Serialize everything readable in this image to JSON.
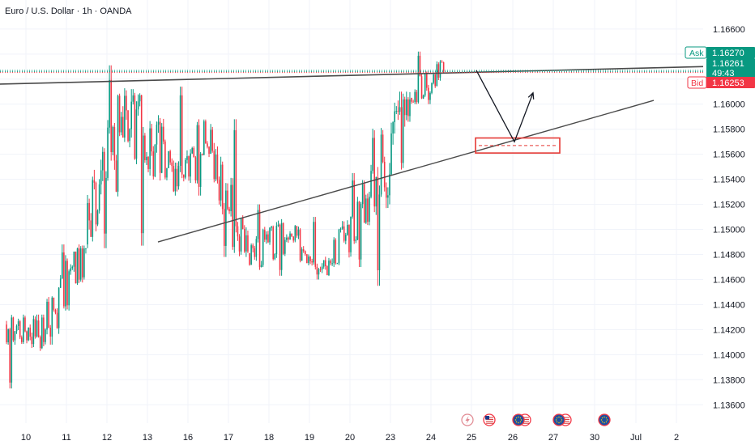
{
  "header": {
    "title": "Euro / U.S. Dollar · 1h · OANDA"
  },
  "colors": {
    "up": "#089981",
    "down": "#f23645",
    "ask": "#089981",
    "bid": "#f23645",
    "trendline": "#4a4a4a",
    "projection": "#131722",
    "zone": "#e53935",
    "grid": "#f0f3fa"
  },
  "price_badges": {
    "ask_label": "Ask",
    "ask_value": "1.16270",
    "last_value": "1.16261",
    "countdown": "49:43",
    "bid_label": "Bid",
    "bid_value": "1.16253"
  },
  "event_icons": [
    "lightning-icon",
    "us-flag-icon",
    "eu-us-flags-icon",
    "eu-us-flags-icon",
    "eu-flag-icon"
  ],
  "chart_data": {
    "type": "candlestick",
    "instrument": "Euro / U.S. Dollar",
    "timeframe": "1h",
    "source": "OANDA",
    "ylim": [
      1.1355,
      1.1678
    ],
    "y_ticks": [
      "1.16600",
      "1.16400",
      "1.16200",
      "1.16000",
      "1.15800",
      "1.15600",
      "1.15400",
      "1.15200",
      "1.15000",
      "1.14800",
      "1.14600",
      "1.14400",
      "1.14200",
      "1.14000",
      "1.13800",
      "1.13600"
    ],
    "x_ticks": [
      "10",
      "11",
      "12",
      "13",
      "16",
      "17",
      "18",
      "19",
      "20",
      "23",
      "24",
      "25",
      "26",
      "27",
      "30",
      "Jul",
      "2"
    ],
    "grid": true,
    "legend": "none",
    "daily_ohlc": [
      {
        "day": "10",
        "open": 1.1424,
        "high": 1.1432,
        "low": 1.1373,
        "close": 1.142
      },
      {
        "day": "11",
        "open": 1.142,
        "high": 1.1488,
        "low": 1.1408,
        "close": 1.1488
      },
      {
        "day": "12",
        "open": 1.1488,
        "high": 1.1631,
        "low": 1.1485,
        "close": 1.1595
      },
      {
        "day": "13",
        "open": 1.1595,
        "high": 1.1612,
        "low": 1.1487,
        "close": 1.1549
      },
      {
        "day": "16",
        "open": 1.1549,
        "high": 1.1614,
        "low": 1.1527,
        "close": 1.1566
      },
      {
        "day": "17",
        "open": 1.1566,
        "high": 1.1588,
        "low": 1.1478,
        "close": 1.1481
      },
      {
        "day": "18",
        "open": 1.1481,
        "high": 1.152,
        "low": 1.1463,
        "close": 1.1492
      },
      {
        "day": "19",
        "open": 1.1492,
        "high": 1.151,
        "low": 1.146,
        "close": 1.1475
      },
      {
        "day": "20",
        "open": 1.1475,
        "high": 1.1545,
        "low": 1.147,
        "close": 1.1526
      },
      {
        "day": "23",
        "open": 1.1526,
        "high": 1.161,
        "low": 1.1455,
        "close": 1.1605
      },
      {
        "day": "24",
        "open": 1.1605,
        "high": 1.1642,
        "low": 1.16,
        "close": 1.1626
      }
    ],
    "current_price": 1.16261,
    "ask": 1.1627,
    "bid": 1.16253,
    "annotations": {
      "upper_trendline": {
        "from": {
          "day": "10",
          "price": 1.1616
        },
        "to": {
          "day": "2",
          "price": 1.163
        }
      },
      "lower_trendline": {
        "from": {
          "day": "13",
          "price": 1.149
        },
        "to": {
          "day": "30",
          "price": 1.1603
        }
      },
      "projection_path": [
        {
          "day": "25",
          "price": 1.1627
        },
        {
          "day": "26",
          "price": 1.157
        },
        {
          "day": "26.5",
          "price": 1.1609
        }
      ],
      "target_zone": {
        "x_from": "25",
        "x_to": "27",
        "top": 1.1573,
        "bottom": 1.1561,
        "mid": 1.1567
      }
    }
  }
}
